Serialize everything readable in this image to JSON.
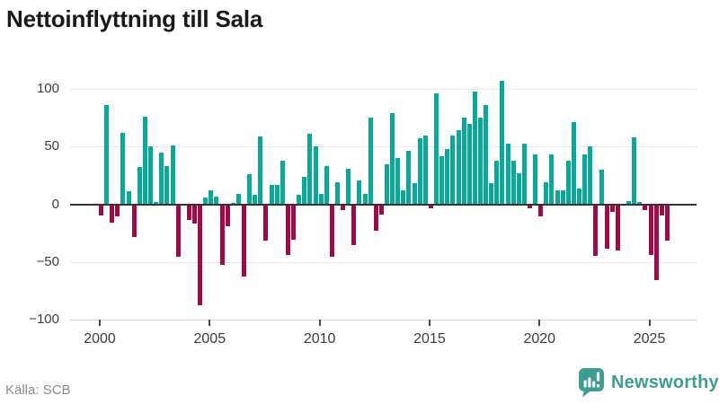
{
  "title": "Nettoinflyttning till Sala",
  "footer": {
    "source": "Källa: SCB",
    "brand": "Newsworthy"
  },
  "colors": {
    "positive_bar": "#0aa79b",
    "negative_bar": "#9d0b49",
    "brand_teal": "#3e9c90",
    "title_text": "#191919",
    "axis_text": "#3d3d3d",
    "muted_text": "#8c8c8c",
    "gridline": "#e7e7e7",
    "zero_line": "#333333",
    "axis_line": "#d6d6d6"
  },
  "chart_data": {
    "type": "bar",
    "title": "Nettoinflyttning till Sala",
    "frequency": "quarterly",
    "start_year": 2000,
    "start_period": "2000 Q1",
    "end_period": "2025 Q4",
    "values": [
      -9,
      86,
      -15,
      -10,
      62,
      11,
      -28,
      32,
      76,
      50,
      2,
      45,
      33,
      51,
      -45,
      0,
      -13,
      -16,
      -87,
      6,
      12,
      7,
      -52,
      -18,
      1,
      9,
      -62,
      26,
      8,
      59,
      -31,
      17,
      17,
      38,
      -43,
      -30,
      8,
      24,
      61,
      50,
      9,
      33,
      -45,
      19,
      -4,
      31,
      -35,
      21,
      9,
      75,
      -22,
      -8,
      35,
      79,
      40,
      12,
      46,
      18,
      57,
      60,
      -3,
      96,
      42,
      48,
      60,
      64,
      75,
      70,
      98,
      75,
      86,
      18,
      38,
      107,
      53,
      38,
      27,
      53,
      -3,
      43,
      -10,
      19,
      43,
      12,
      12,
      38,
      71,
      14,
      43,
      50,
      -44,
      30,
      -38,
      -6,
      -39,
      0,
      3,
      58,
      2,
      -4,
      -43,
      -65,
      -9,
      -31
    ],
    "y_ticks": [
      100,
      50,
      0,
      -50,
      -100
    ],
    "x_tick_years": [
      2000,
      2005,
      2010,
      2015,
      2020,
      2025
    ],
    "ylim": [
      -100,
      112
    ],
    "grid": "horizontal",
    "legend": "none",
    "xlabel": "",
    "ylabel": ""
  }
}
